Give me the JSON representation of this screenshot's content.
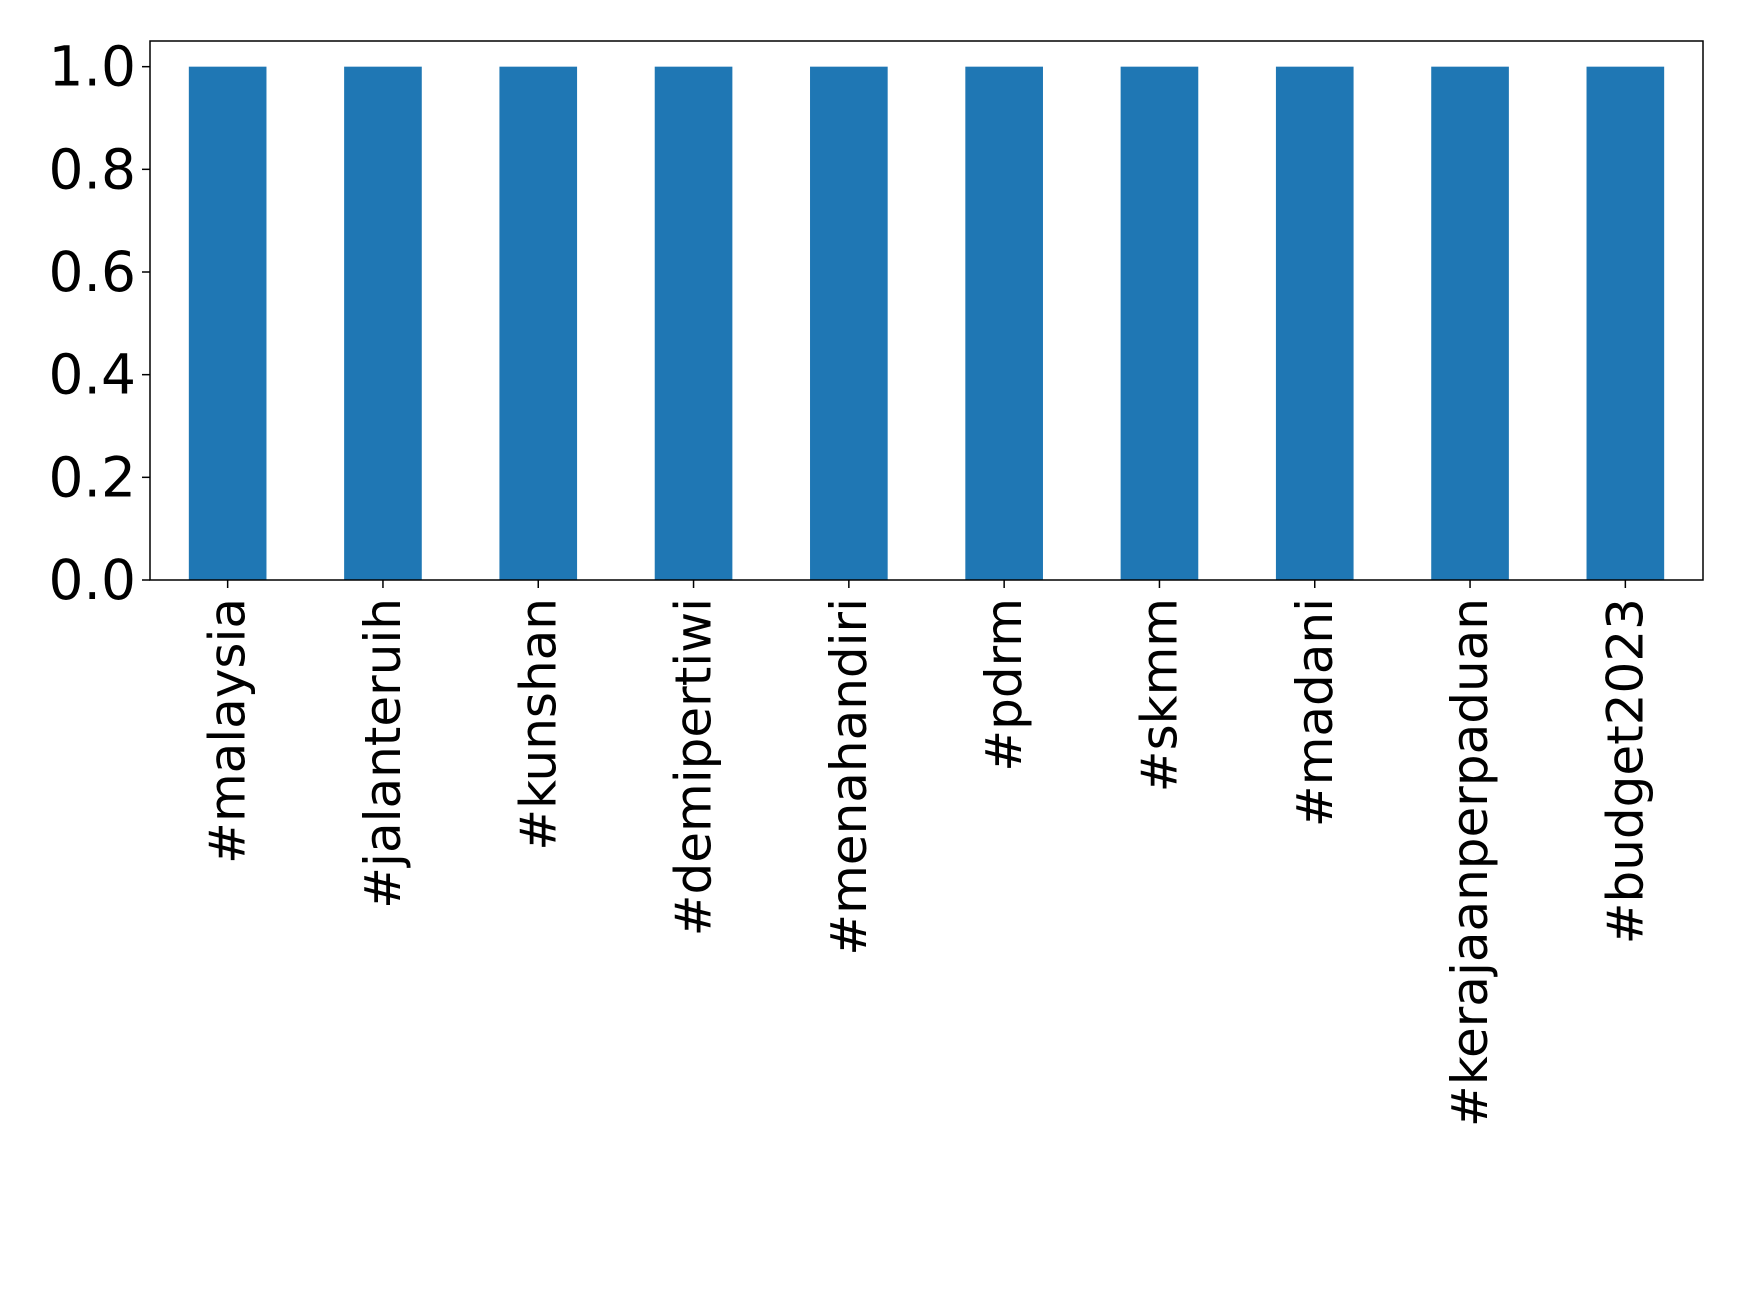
{
  "chart_data": {
    "type": "bar",
    "title": "",
    "xlabel": "",
    "ylabel": "",
    "categories": [
      "#malaysia",
      "#jalanteruih",
      "#kunshan",
      "#demipertiwi",
      "#menahandiri",
      "#pdrm",
      "#skmm",
      "#madani",
      "#kerajaanperpaduan",
      "#budget2023"
    ],
    "values": [
      1.0,
      1.0,
      1.0,
      1.0,
      1.0,
      1.0,
      1.0,
      1.0,
      1.0,
      1.0
    ],
    "ylim": [
      0.0,
      1.05
    ],
    "yticks": [
      "0.0",
      "0.2",
      "0.4",
      "0.6",
      "0.8",
      "1.0"
    ],
    "grid": false,
    "bar_color": "#1f77b4"
  }
}
